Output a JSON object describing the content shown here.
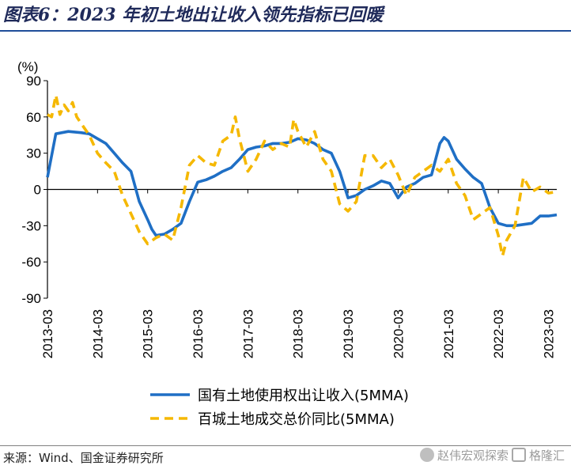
{
  "title": "图表6：2023 年初土地出让收入领先指标已回暖",
  "source": "来源：Wind、国金证券研究所",
  "watermark": {
    "text1": "赵伟宏观探索",
    "text2": "格隆汇"
  },
  "colors": {
    "series1": "#1f6fc5",
    "series2": "#f5b800",
    "title": "#1f2a5a"
  },
  "chart_data": {
    "type": "line",
    "yunit": "(%)",
    "ylim": [
      -90,
      90
    ],
    "yticks": [
      90,
      60,
      30,
      0,
      -30,
      -60,
      -90
    ],
    "xlim": [
      "2013-03",
      "2023-05"
    ],
    "xticks": [
      "2013-03",
      "2014-03",
      "2015-03",
      "2016-03",
      "2017-03",
      "2018-03",
      "2019-03",
      "2020-03",
      "2021-03",
      "2022-03",
      "2023-03"
    ],
    "legend_position": "bottom-center",
    "grid": false,
    "series": [
      {
        "name": "国有土地使用权出让收入(5MMA)",
        "style": "solid",
        "points": [
          [
            "2013-03",
            10
          ],
          [
            "2013-05",
            46
          ],
          [
            "2013-08",
            48
          ],
          [
            "2013-11",
            47
          ],
          [
            "2014-01",
            46
          ],
          [
            "2014-03",
            42
          ],
          [
            "2014-05",
            38
          ],
          [
            "2014-07",
            30
          ],
          [
            "2014-09",
            22
          ],
          [
            "2014-11",
            15
          ],
          [
            "2015-01",
            -10
          ],
          [
            "2015-03",
            -25
          ],
          [
            "2015-04",
            -33
          ],
          [
            "2015-05",
            -38
          ],
          [
            "2015-07",
            -37
          ],
          [
            "2015-09",
            -33
          ],
          [
            "2015-11",
            -28
          ],
          [
            "2016-01",
            -10
          ],
          [
            "2016-03",
            6
          ],
          [
            "2016-05",
            8
          ],
          [
            "2016-07",
            11
          ],
          [
            "2016-09",
            15
          ],
          [
            "2016-11",
            18
          ],
          [
            "2017-01",
            25
          ],
          [
            "2017-03",
            33
          ],
          [
            "2017-05",
            35
          ],
          [
            "2017-07",
            36
          ],
          [
            "2017-09",
            38
          ],
          [
            "2017-11",
            38
          ],
          [
            "2018-01",
            39
          ],
          [
            "2018-03",
            42
          ],
          [
            "2018-05",
            41
          ],
          [
            "2018-07",
            38
          ],
          [
            "2018-09",
            33
          ],
          [
            "2018-11",
            30
          ],
          [
            "2019-01",
            15
          ],
          [
            "2019-03",
            -7
          ],
          [
            "2019-05",
            -5
          ],
          [
            "2019-07",
            0
          ],
          [
            "2019-09",
            3
          ],
          [
            "2019-11",
            7
          ],
          [
            "2020-01",
            5
          ],
          [
            "2020-03",
            -7
          ],
          [
            "2020-05",
            2
          ],
          [
            "2020-07",
            5
          ],
          [
            "2020-09",
            10
          ],
          [
            "2020-11",
            12
          ],
          [
            "2021-01",
            38
          ],
          [
            "2021-02",
            43
          ],
          [
            "2021-03",
            40
          ],
          [
            "2021-05",
            25
          ],
          [
            "2021-07",
            17
          ],
          [
            "2021-09",
            10
          ],
          [
            "2021-11",
            5
          ],
          [
            "2022-01",
            -15
          ],
          [
            "2022-03",
            -28
          ],
          [
            "2022-05",
            -30
          ],
          [
            "2022-07",
            -30
          ],
          [
            "2022-09",
            -29
          ],
          [
            "2022-11",
            -28
          ],
          [
            "2023-01",
            -22
          ],
          [
            "2023-03",
            -22
          ],
          [
            "2023-05",
            -21
          ]
        ]
      },
      {
        "name": "百城土地成交总价同比(5MMA)",
        "style": "dashed",
        "points": [
          [
            "2013-03",
            62
          ],
          [
            "2013-04",
            60
          ],
          [
            "2013-05",
            78
          ],
          [
            "2013-06",
            62
          ],
          [
            "2013-07",
            70
          ],
          [
            "2013-08",
            65
          ],
          [
            "2013-09",
            72
          ],
          [
            "2013-10",
            60
          ],
          [
            "2013-11",
            55
          ],
          [
            "2014-01",
            45
          ],
          [
            "2014-03",
            30
          ],
          [
            "2014-05",
            22
          ],
          [
            "2014-07",
            15
          ],
          [
            "2014-09",
            -5
          ],
          [
            "2014-11",
            -20
          ],
          [
            "2015-01",
            -35
          ],
          [
            "2015-03",
            -45
          ],
          [
            "2015-05",
            -40
          ],
          [
            "2015-07",
            -37
          ],
          [
            "2015-09",
            -42
          ],
          [
            "2015-11",
            -15
          ],
          [
            "2016-01",
            20
          ],
          [
            "2016-03",
            28
          ],
          [
            "2016-05",
            22
          ],
          [
            "2016-07",
            20
          ],
          [
            "2016-09",
            40
          ],
          [
            "2016-11",
            45
          ],
          [
            "2016-12",
            60
          ],
          [
            "2017-01",
            42
          ],
          [
            "2017-03",
            15
          ],
          [
            "2017-05",
            25
          ],
          [
            "2017-07",
            40
          ],
          [
            "2017-09",
            33
          ],
          [
            "2017-11",
            38
          ],
          [
            "2018-01",
            35
          ],
          [
            "2018-02",
            58
          ],
          [
            "2018-03",
            48
          ],
          [
            "2018-05",
            35
          ],
          [
            "2018-07",
            48
          ],
          [
            "2018-09",
            25
          ],
          [
            "2018-11",
            15
          ],
          [
            "2019-01",
            -12
          ],
          [
            "2019-03",
            -18
          ],
          [
            "2019-05",
            -10
          ],
          [
            "2019-07",
            28
          ],
          [
            "2019-09",
            28
          ],
          [
            "2019-11",
            18
          ],
          [
            "2020-01",
            25
          ],
          [
            "2020-03",
            12
          ],
          [
            "2020-05",
            -5
          ],
          [
            "2020-07",
            10
          ],
          [
            "2020-09",
            15
          ],
          [
            "2020-11",
            20
          ],
          [
            "2021-01",
            15
          ],
          [
            "2021-03",
            25
          ],
          [
            "2021-05",
            5
          ],
          [
            "2021-07",
            -5
          ],
          [
            "2021-09",
            -25
          ],
          [
            "2021-11",
            -20
          ],
          [
            "2022-01",
            -15
          ],
          [
            "2022-03",
            -38
          ],
          [
            "2022-04",
            -55
          ],
          [
            "2022-05",
            -42
          ],
          [
            "2022-07",
            -30
          ],
          [
            "2022-09",
            10
          ],
          [
            "2022-11",
            -2
          ],
          [
            "2023-01",
            2
          ],
          [
            "2023-03",
            -3
          ],
          [
            "2023-05",
            -2
          ]
        ]
      }
    ]
  }
}
